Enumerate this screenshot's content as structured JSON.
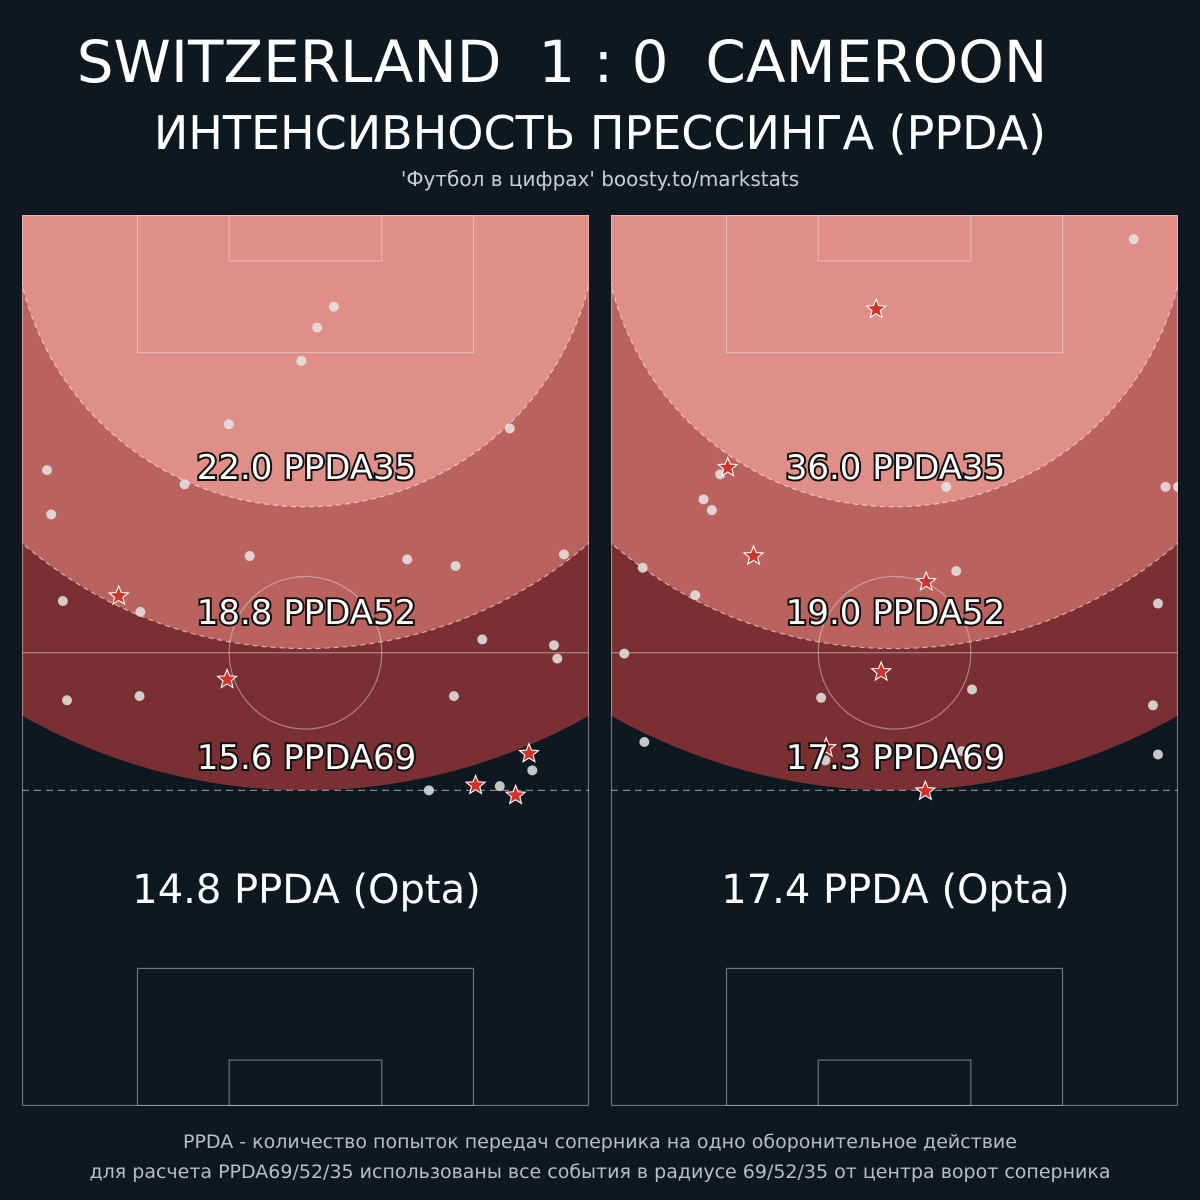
{
  "header": {
    "title": "SWITZERLAND  1 : 0  CAMEROON",
    "subtitle": "ИНТЕНСИВНОСТЬ ПРЕССИНГА (PPDA)",
    "credit": "'Футбол в цифрах' boosty.to/markstats"
  },
  "footer": {
    "line1": "PPDA - количество попыток передач соперника на одно оборонительное действие",
    "line2": "для расчета PPDA69/52/35 использованы все события в радиусе 69/52/35 от центра ворот соперника"
  },
  "colors": {
    "background": "#0e1821",
    "zone35": "#df8e88",
    "zone52": "#ba625e",
    "zone69": "#7a3032",
    "pass_point": "#e6e6e6",
    "defensive_action_star": "#d0332c"
  },
  "chart_data": [
    {
      "type": "scatter",
      "team": "SWITZERLAND",
      "ppda_labels": {
        "ppda35": "22.0 PPDA35",
        "ppda52": "18.8 PPDA52",
        "ppda69": "15.6 PPDA69",
        "opta": "14.8 PPDA (Opta)"
      },
      "values": {
        "ppda35": 22.0,
        "ppda52": 18.8,
        "ppda69": 15.6,
        "opta": 14.8
      },
      "pitch": {
        "length": 105,
        "width": 68,
        "radii": [
          35,
          52,
          69
        ]
      },
      "passes": [
        [
          11.0,
          37.4
        ],
        [
          13.5,
          35.4
        ],
        [
          17.5,
          33.5
        ],
        [
          25.6,
          58.5
        ],
        [
          25.1,
          24.8
        ],
        [
          30.6,
          3.0
        ],
        [
          32.3,
          19.5
        ],
        [
          35.9,
          3.5
        ],
        [
          41.3,
          46.2
        ],
        [
          40.7,
          65.0
        ],
        [
          40.9,
          27.3
        ],
        [
          42.1,
          52.0
        ],
        [
          46.3,
          4.9
        ],
        [
          47.6,
          14.2
        ],
        [
          51.6,
          63.8
        ],
        [
          50.9,
          55.2
        ],
        [
          53.2,
          64.2
        ],
        [
          58.2,
          5.4
        ],
        [
          57.7,
          14.1
        ],
        [
          57.7,
          51.8
        ],
        [
          66.6,
          61.2
        ],
        [
          69.0,
          48.8
        ],
        [
          68.5,
          57.3
        ]
      ],
      "defensive_actions": [
        [
          45.7,
          11.6
        ],
        [
          55.7,
          24.6
        ],
        [
          64.6,
          60.8
        ],
        [
          68.4,
          54.4
        ],
        [
          69.6,
          59.2
        ]
      ]
    },
    {
      "type": "scatter",
      "team": "CAMEROON",
      "ppda_labels": {
        "ppda35": "36.0 PPDA35",
        "ppda52": "19.0 PPDA52",
        "ppda69": "17.3 PPDA69",
        "opta": "17.4 PPDA (Opta)"
      },
      "values": {
        "ppda35": 36.0,
        "ppda52": 19.0,
        "ppda69": 17.3,
        "opta": 17.4
      },
      "pitch": {
        "length": 105,
        "width": 68,
        "radii": [
          35,
          52,
          69
        ]
      },
      "passes": [
        [
          2.9,
          62.7
        ],
        [
          31.1,
          13.1
        ],
        [
          34.1,
          11.1
        ],
        [
          35.4,
          12.1
        ],
        [
          32.6,
          40.2
        ],
        [
          32.6,
          66.5
        ],
        [
          32.6,
          68.0
        ],
        [
          42.3,
          3.8
        ],
        [
          42.7,
          41.4
        ],
        [
          46.6,
          65.6
        ],
        [
          45.6,
          10.1
        ],
        [
          52.6,
          1.6
        ],
        [
          56.9,
          43.3
        ],
        [
          57.9,
          25.2
        ],
        [
          63.2,
          4.0
        ],
        [
          65.4,
          25.7
        ],
        [
          58.8,
          65.0
        ],
        [
          64.7,
          65.6
        ],
        [
          64.3,
          42.1
        ]
      ],
      "defensive_actions": [
        [
          11.3,
          31.8
        ],
        [
          30.3,
          14.0
        ],
        [
          40.9,
          17.1
        ],
        [
          44.0,
          37.8
        ],
        [
          54.8,
          32.4
        ],
        [
          63.9,
          25.8
        ],
        [
          69.1,
          37.7
        ]
      ]
    }
  ]
}
